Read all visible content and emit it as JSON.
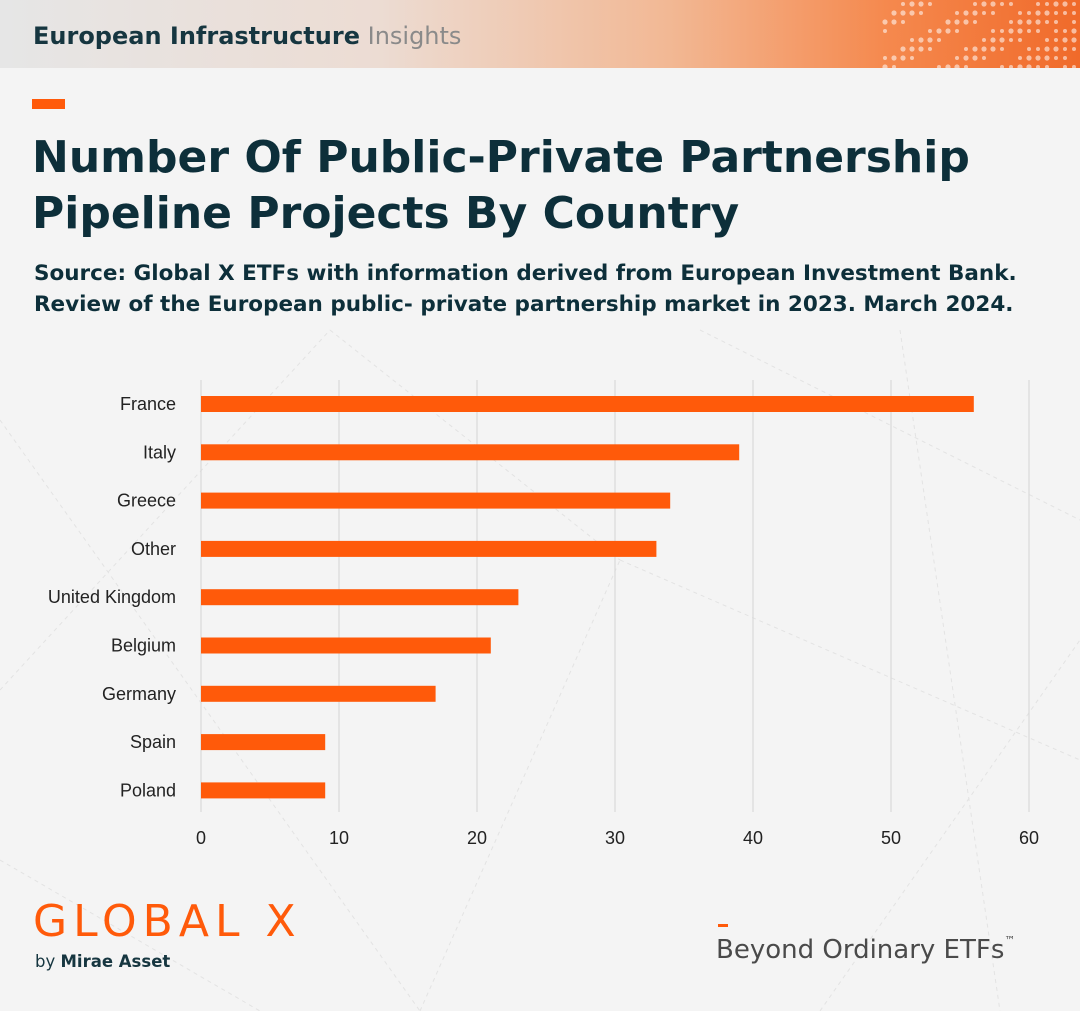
{
  "header": {
    "title_bold": "European Infrastructure",
    "title_light": "Insights"
  },
  "title": "Number Of Public-Private Partnership Pipeline Projects By Country",
  "source": "Source: Global X ETFs with information derived from European Investment Bank. Review of the European public- private partnership market in 2023. March 2024.",
  "colors": {
    "accent": "#ff5a0a",
    "title_text": "#0d2f3a",
    "background": "#f4f4f4"
  },
  "chart_data": {
    "type": "bar",
    "orientation": "horizontal",
    "categories": [
      "France",
      "Italy",
      "Greece",
      "Other",
      "United Kingdom",
      "Belgium",
      "Germany",
      "Spain",
      "Poland"
    ],
    "values": [
      56,
      39,
      34,
      33,
      23,
      21,
      17,
      9,
      9
    ],
    "xlim": [
      0,
      60
    ],
    "xticks": [
      0,
      10,
      20,
      30,
      40,
      50,
      60
    ],
    "grid": "vertical",
    "bar_color": "#ff5a0a"
  },
  "footer": {
    "logo_text": "GLOBAL X",
    "logo_sub_prefix": "by",
    "logo_sub_name": "Mirae Asset",
    "tagline": "Beyond Ordinary ETFs",
    "tagline_mark": "™"
  }
}
